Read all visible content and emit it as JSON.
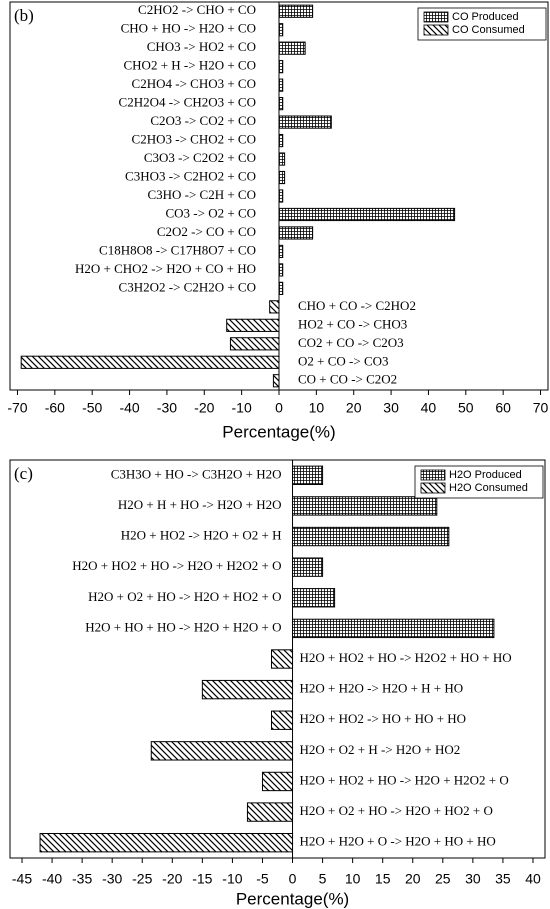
{
  "chart_data": [
    {
      "type": "hbar",
      "panel_label": "(b)",
      "x_label": "Percentage(%)",
      "categories": [
        "C2HO2 -> CHO + CO",
        "CHO + HO -> H2O + CO",
        "CHO3 -> HO2 + CO",
        "CHO2 + H -> H2O + CO",
        "C2HO4 -> CHO3 + CO",
        "C2H2O4 -> CH2O3 + CO",
        "C2O3 -> CO2 + CO",
        "C2HO3 -> CHO2 + CO",
        "C3O3 -> C2O2 + CO",
        "C3HO3 -> C2HO2 + CO",
        "C3HO -> C2H + CO",
        "CO3 -> O2 + CO",
        "C2O2 -> CO + CO",
        "C18H8O8 -> C17H8O7 + CO",
        "H2O + CHO2 -> H2O + CO + HO",
        "C3H2O2 -> C2H2O + CO",
        "CHO + CO -> C2HO2",
        "HO2 + CO -> CHO3",
        "CO2 + CO -> C2O3",
        "O2 + CO -> CO3",
        "CO + CO -> C2O2"
      ],
      "series": [
        {
          "name": "CO Produced",
          "color": "#000000",
          "pattern": "grid",
          "values": [
            9,
            1,
            7,
            1,
            1,
            1,
            14,
            1,
            1.5,
            1.5,
            1,
            47,
            9,
            1,
            1,
            1,
            null,
            null,
            null,
            null,
            null
          ]
        },
        {
          "name": "CO Consumed",
          "color": "#000000",
          "pattern": "diagonal",
          "values": [
            null,
            null,
            null,
            null,
            null,
            null,
            null,
            null,
            null,
            null,
            null,
            null,
            null,
            null,
            null,
            null,
            -2.5,
            -14,
            -13,
            -69,
            -1.5
          ]
        }
      ],
      "xlim": [
        -72,
        72
      ],
      "xticks": [
        -70,
        -60,
        -50,
        -40,
        -30,
        -20,
        -10,
        0,
        10,
        20,
        30,
        40,
        50,
        60,
        70
      ],
      "legend": "upper right"
    },
    {
      "type": "hbar",
      "panel_label": "(c)",
      "x_label": "Percentage(%)",
      "categories": [
        "C3H3O + HO -> C3H2O + H2O",
        "H2O + H + HO -> H2O + H2O",
        "H2O + HO2 -> H2O + O2 + H",
        "H2O + HO2 + HO -> H2O + H2O2 + O",
        "H2O + O2 + HO -> H2O + HO2 + O",
        "H2O + HO + HO -> H2O + H2O + O",
        "H2O + HO2 + HO -> H2O2 + HO + HO",
        "H2O + H2O -> H2O + H + HO",
        "H2O + HO2 -> HO + HO + HO",
        "H2O + O2 + H -> H2O + HO2",
        "H2O + HO2 + HO -> H2O + H2O2 + O",
        "H2O + O2 + HO -> H2O + HO2 + O",
        "H2O + H2O + O -> H2O + HO + HO"
      ],
      "series": [
        {
          "name": "H2O Produced",
          "color": "#000000",
          "pattern": "grid",
          "values": [
            5,
            24,
            26,
            5,
            7,
            33.5,
            null,
            null,
            null,
            null,
            null,
            null,
            null
          ]
        },
        {
          "name": "H2O Consumed",
          "color": "#000000",
          "pattern": "diagonal",
          "values": [
            null,
            null,
            null,
            null,
            null,
            null,
            -3.5,
            -15,
            -3.5,
            -23.5,
            -5,
            -7.5,
            -42
          ]
        }
      ],
      "xlim": [
        -47,
        42
      ],
      "xticks": [
        -45,
        -40,
        -35,
        -30,
        -25,
        -20,
        -15,
        -10,
        -5,
        0,
        5,
        10,
        15,
        20,
        25,
        30,
        35,
        40
      ],
      "legend": "upper right"
    }
  ]
}
